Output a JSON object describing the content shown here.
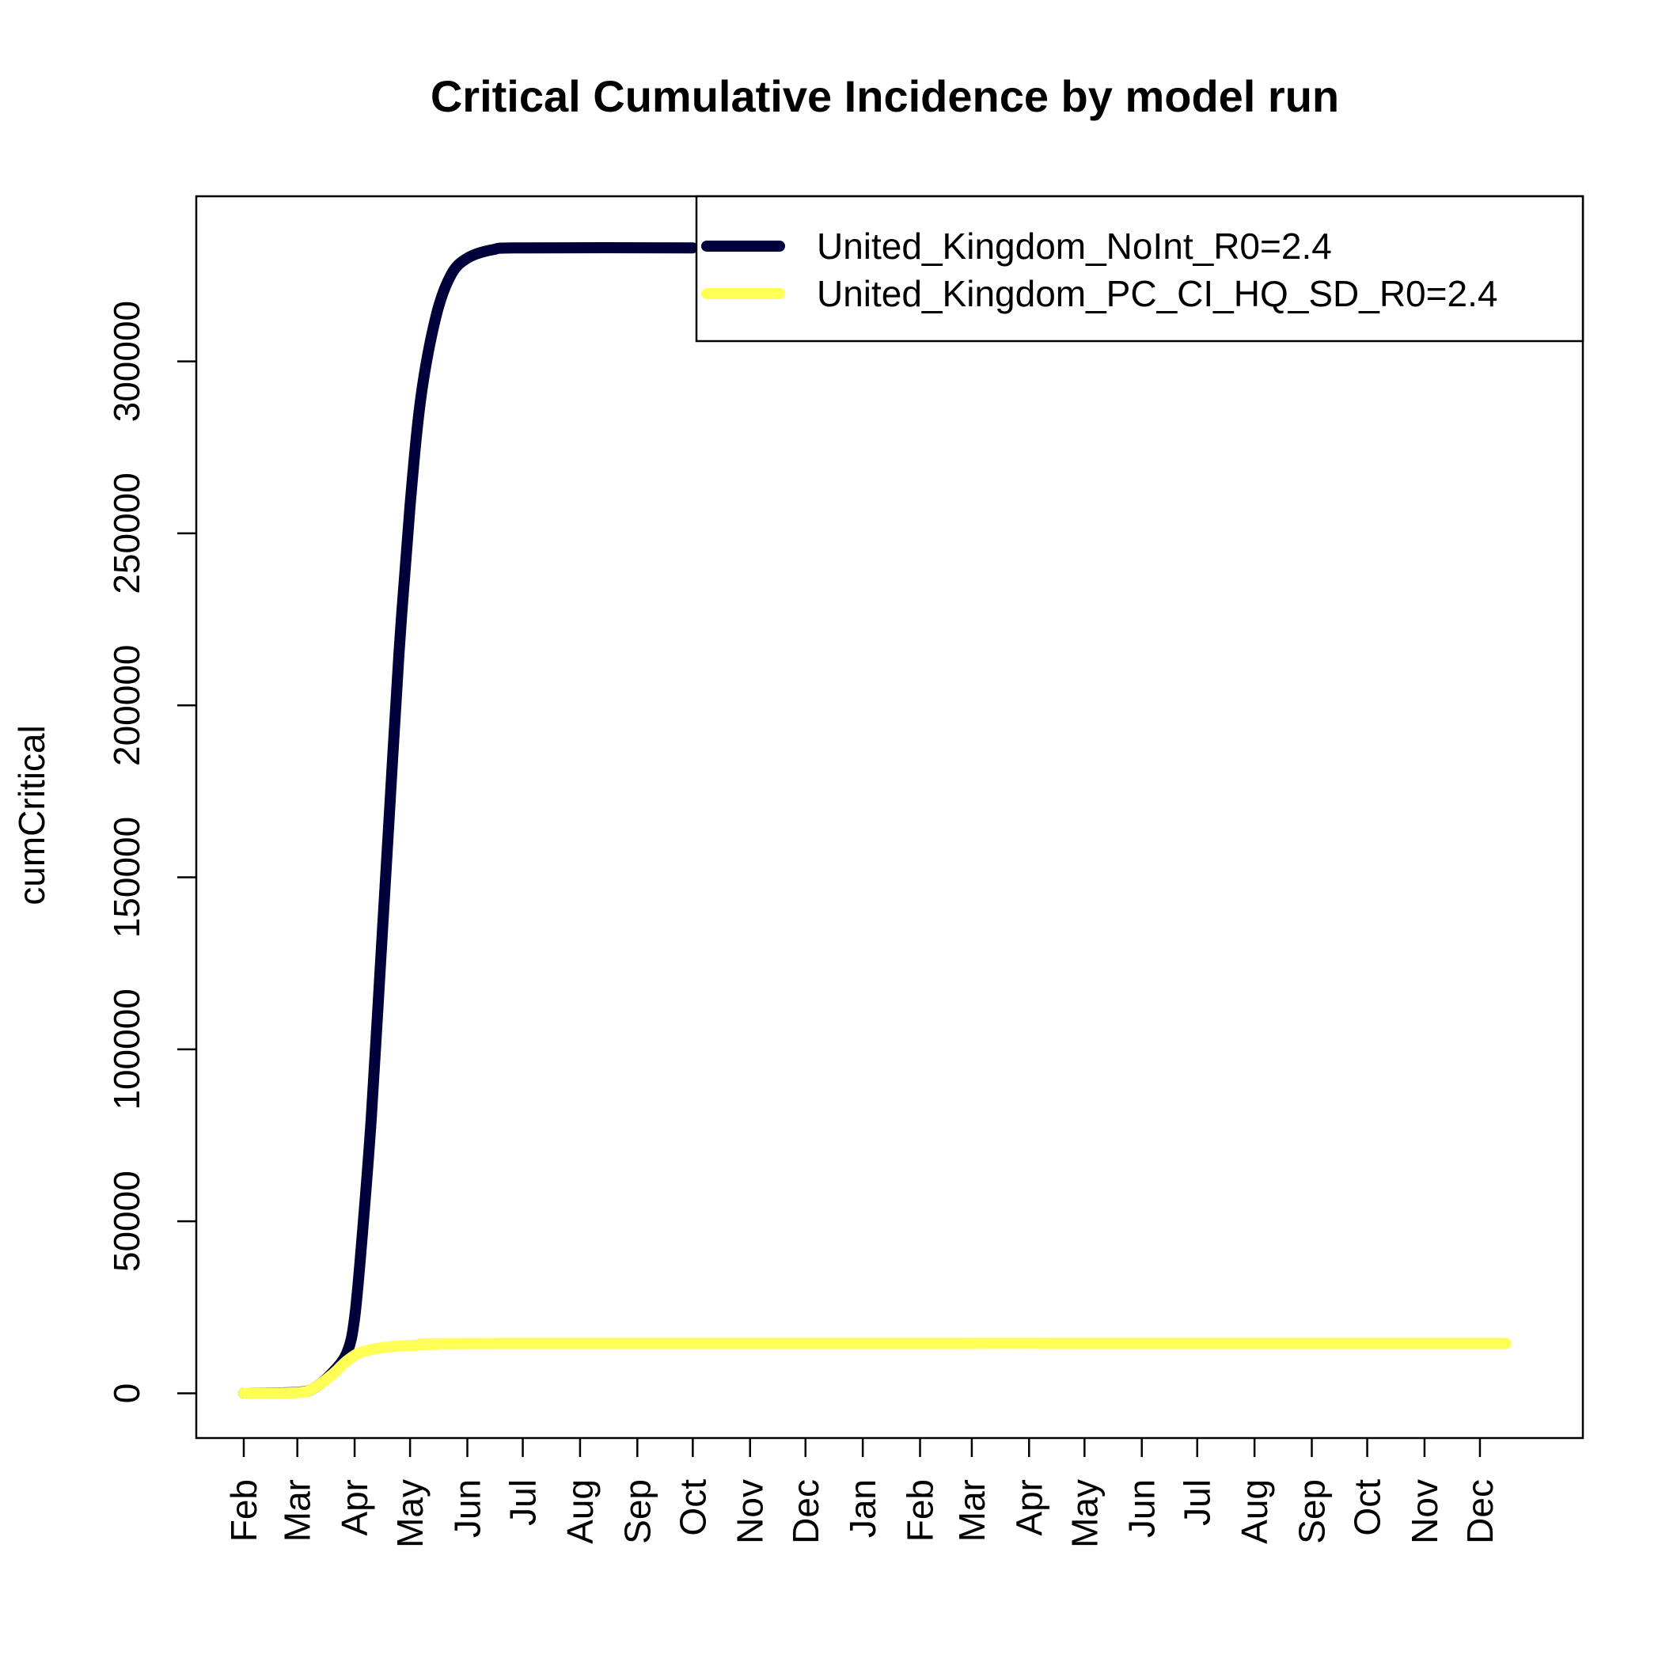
{
  "chart_data": {
    "type": "line",
    "title": "Critical Cumulative Incidence by model run",
    "xlabel": "",
    "ylabel": "cumCritical",
    "x_domain": [
      "2020-02-01",
      "2021-12-31"
    ],
    "ylim": [
      -13000,
      348000
    ],
    "y_ticks": [
      0,
      50000,
      100000,
      150000,
      200000,
      250000,
      300000
    ],
    "x_ticks": [
      {
        "label": "Feb",
        "date": "2020-02-01"
      },
      {
        "label": "Mar",
        "date": "2020-03-01"
      },
      {
        "label": "Apr",
        "date": "2020-04-01"
      },
      {
        "label": "May",
        "date": "2020-05-01"
      },
      {
        "label": "Jun",
        "date": "2020-06-01"
      },
      {
        "label": "Jul",
        "date": "2020-07-01"
      },
      {
        "label": "Aug",
        "date": "2020-08-01"
      },
      {
        "label": "Sep",
        "date": "2020-09-01"
      },
      {
        "label": "Oct",
        "date": "2020-10-01"
      },
      {
        "label": "Nov",
        "date": "2020-11-01"
      },
      {
        "label": "Dec",
        "date": "2020-12-01"
      },
      {
        "label": "Jan",
        "date": "2021-01-01"
      },
      {
        "label": "Feb",
        "date": "2021-02-01"
      },
      {
        "label": "Mar",
        "date": "2021-03-01"
      },
      {
        "label": "Apr",
        "date": "2021-04-01"
      },
      {
        "label": "May",
        "date": "2021-05-01"
      },
      {
        "label": "Jun",
        "date": "2021-06-01"
      },
      {
        "label": "Jul",
        "date": "2021-07-01"
      },
      {
        "label": "Aug",
        "date": "2021-08-01"
      },
      {
        "label": "Sep",
        "date": "2021-09-01"
      },
      {
        "label": "Oct",
        "date": "2021-10-01"
      },
      {
        "label": "Nov",
        "date": "2021-11-01"
      },
      {
        "label": "Dec",
        "date": "2021-12-01"
      }
    ],
    "grid": false,
    "legend_position": "top-right",
    "series": [
      {
        "name": "United_Kingdom_NoInt_R0=2.4",
        "color": "#00003a",
        "points": [
          {
            "x": "2020-02-01",
            "y": 0
          },
          {
            "x": "2020-03-01",
            "y": 300
          },
          {
            "x": "2020-03-10",
            "y": 1500
          },
          {
            "x": "2020-03-20",
            "y": 6000
          },
          {
            "x": "2020-03-28",
            "y": 12000
          },
          {
            "x": "2020-04-01",
            "y": 22000
          },
          {
            "x": "2020-04-05",
            "y": 45000
          },
          {
            "x": "2020-04-10",
            "y": 80000
          },
          {
            "x": "2020-04-15",
            "y": 125000
          },
          {
            "x": "2020-04-20",
            "y": 170000
          },
          {
            "x": "2020-04-25",
            "y": 215000
          },
          {
            "x": "2020-05-01",
            "y": 258000
          },
          {
            "x": "2020-05-07",
            "y": 290000
          },
          {
            "x": "2020-05-15",
            "y": 313000
          },
          {
            "x": "2020-05-23",
            "y": 325000
          },
          {
            "x": "2020-06-01",
            "y": 330000
          },
          {
            "x": "2020-06-15",
            "y": 332500
          },
          {
            "x": "2020-07-01",
            "y": 333000
          },
          {
            "x": "2020-10-01",
            "y": 333000
          }
        ]
      },
      {
        "name": "United_Kingdom_PC_CI_HQ_SD_R0=2.4",
        "color": "#ffff55",
        "points": [
          {
            "x": "2020-02-01",
            "y": 0
          },
          {
            "x": "2020-03-01",
            "y": 200
          },
          {
            "x": "2020-03-10",
            "y": 1500
          },
          {
            "x": "2020-03-20",
            "y": 5500
          },
          {
            "x": "2020-03-28",
            "y": 9500
          },
          {
            "x": "2020-04-05",
            "y": 12000
          },
          {
            "x": "2020-04-20",
            "y": 13500
          },
          {
            "x": "2020-05-15",
            "y": 14200
          },
          {
            "x": "2020-07-01",
            "y": 14500
          },
          {
            "x": "2021-12-15",
            "y": 14500
          }
        ]
      }
    ]
  }
}
